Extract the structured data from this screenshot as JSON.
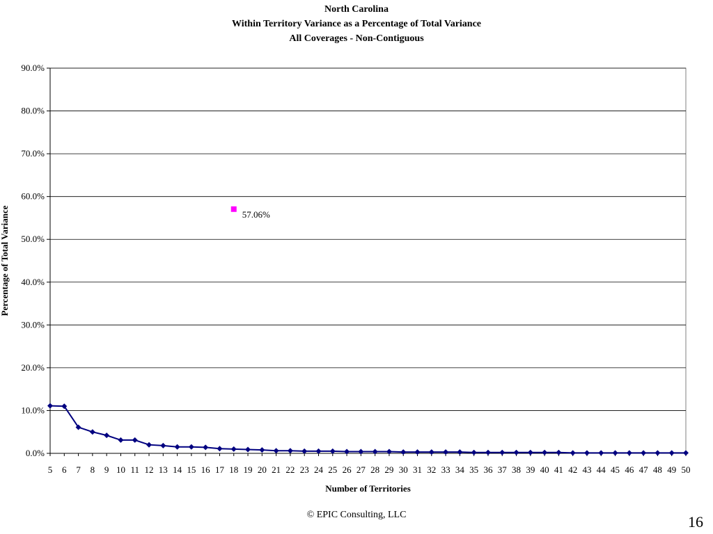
{
  "slide": {
    "title_lines": [
      "North Carolina",
      "Within Territory Variance as a Percentage of Total Variance",
      "All Coverages - Non-Contiguous"
    ],
    "footer": "© EPIC Consulting, LLC",
    "page_number": "16"
  },
  "chart_data": {
    "type": "line",
    "xlabel": "Number of Territories",
    "ylabel": "Percentage of Total Variance",
    "ylim": [
      0,
      90
    ],
    "yticks": [
      "0.0%",
      "10.0%",
      "20.0%",
      "30.0%",
      "40.0%",
      "50.0%",
      "60.0%",
      "70.0%",
      "80.0%",
      "90.0%"
    ],
    "grid": true,
    "x": [
      5,
      6,
      7,
      8,
      9,
      10,
      11,
      12,
      13,
      14,
      15,
      16,
      17,
      18,
      19,
      20,
      21,
      22,
      23,
      24,
      25,
      26,
      27,
      28,
      29,
      30,
      31,
      32,
      33,
      34,
      35,
      36,
      37,
      38,
      39,
      40,
      41,
      42,
      43,
      44,
      45,
      46,
      47,
      48,
      49,
      50
    ],
    "series": [
      {
        "color": "#000080",
        "marker": "diamond",
        "values": [
          11.1,
          11.0,
          6.1,
          5.0,
          4.2,
          3.1,
          3.1,
          2.0,
          1.8,
          1.5,
          1.5,
          1.4,
          1.1,
          1.0,
          0.9,
          0.8,
          0.6,
          0.6,
          0.5,
          0.5,
          0.5,
          0.4,
          0.4,
          0.4,
          0.4,
          0.3,
          0.3,
          0.3,
          0.3,
          0.3,
          0.2,
          0.2,
          0.2,
          0.2,
          0.2,
          0.2,
          0.2,
          0.1,
          0.1,
          0.1,
          0.1,
          0.1,
          0.1,
          0.1,
          0.1,
          0.1
        ]
      },
      {
        "color": "#FF00FF",
        "marker": "square",
        "points": [
          {
            "x": 18,
            "y": 57.06
          }
        ],
        "label": "57.06%"
      }
    ]
  }
}
